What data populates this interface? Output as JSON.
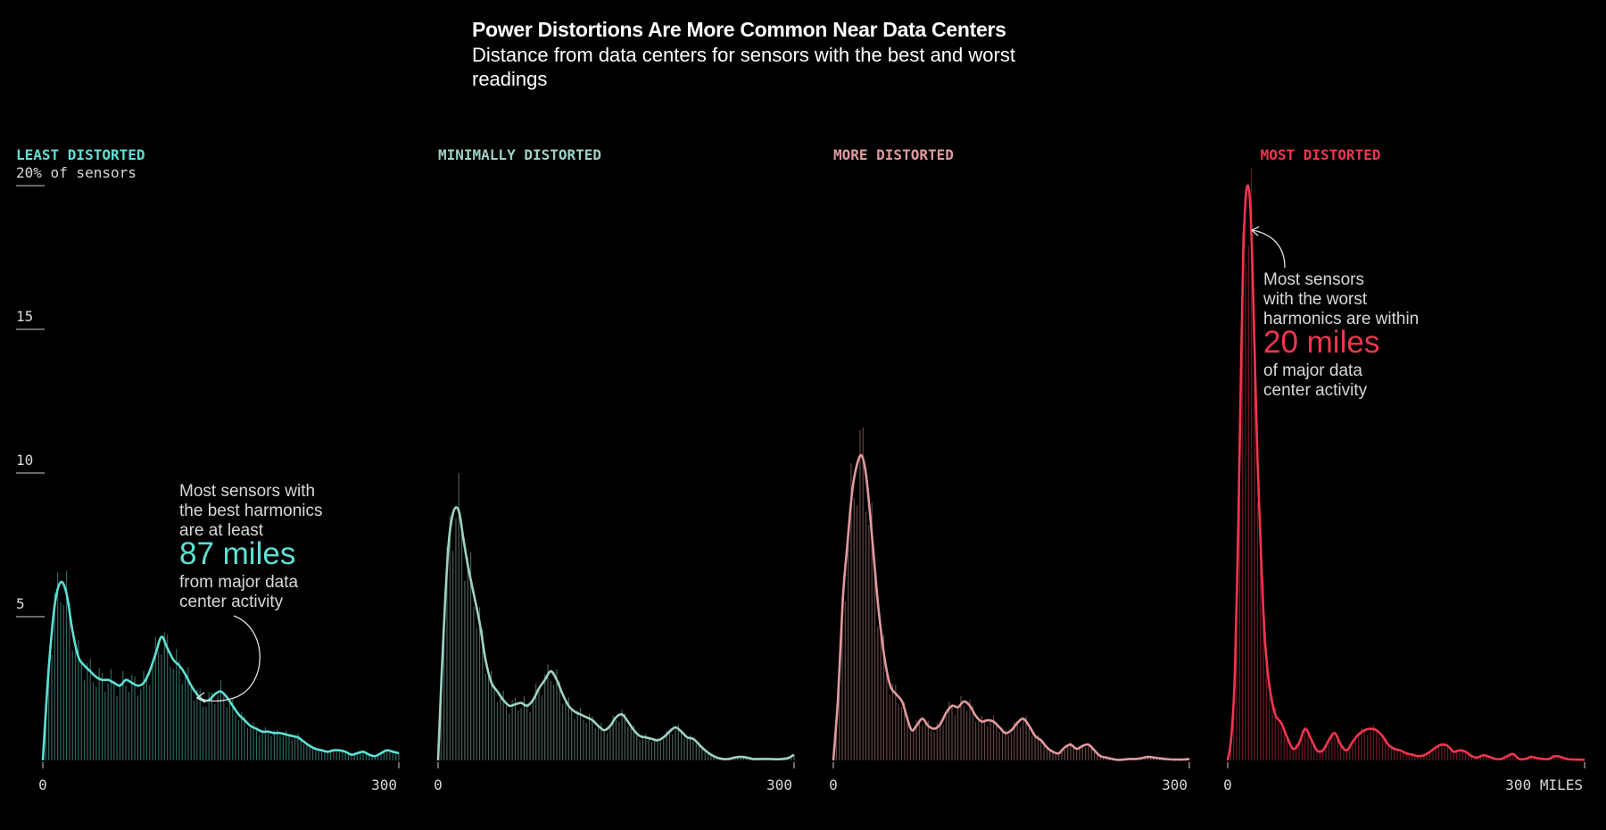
{
  "title": "Power Distortions Are More Common Near Data Centers",
  "subtitle": "Distance from data centers for sensors with the best and worst readings",
  "chart_data": {
    "type": "area",
    "xlim": [
      0,
      300
    ],
    "ylim": [
      0,
      20
    ],
    "yticks": [
      {
        "value": 20,
        "label": "20% of sensors"
      },
      {
        "value": 15,
        "label": "15"
      },
      {
        "value": 10,
        "label": "10"
      },
      {
        "value": 5,
        "label": "5"
      }
    ],
    "x_tick_labels": [
      "0",
      "300"
    ],
    "x_unit_label": "300 MILES",
    "panels": [
      {
        "name": "LEAST DISTORTED",
        "color": "#5ee0d4",
        "curve": [
          [
            0,
            0
          ],
          [
            5,
            3.2
          ],
          [
            10,
            5.4
          ],
          [
            15,
            6.2
          ],
          [
            20,
            5.8
          ],
          [
            25,
            4.5
          ],
          [
            30,
            3.6
          ],
          [
            35,
            3.3
          ],
          [
            40,
            3.1
          ],
          [
            45,
            2.9
          ],
          [
            50,
            2.8
          ],
          [
            55,
            2.8
          ],
          [
            60,
            2.7
          ],
          [
            65,
            2.6
          ],
          [
            70,
            2.8
          ],
          [
            75,
            2.7
          ],
          [
            80,
            2.6
          ],
          [
            85,
            2.7
          ],
          [
            90,
            3.1
          ],
          [
            95,
            3.7
          ],
          [
            100,
            4.3
          ],
          [
            105,
            3.9
          ],
          [
            110,
            3.5
          ],
          [
            115,
            3.3
          ],
          [
            120,
            3.0
          ],
          [
            125,
            2.6
          ],
          [
            130,
            2.3
          ],
          [
            135,
            2.1
          ],
          [
            140,
            2.1
          ],
          [
            145,
            2.3
          ],
          [
            150,
            2.4
          ],
          [
            155,
            2.2
          ],
          [
            160,
            1.9
          ],
          [
            165,
            1.6
          ],
          [
            170,
            1.4
          ],
          [
            175,
            1.2
          ],
          [
            180,
            1.1
          ],
          [
            185,
            1.0
          ],
          [
            190,
            1.0
          ],
          [
            195,
            0.95
          ],
          [
            200,
            0.95
          ],
          [
            205,
            0.9
          ],
          [
            210,
            0.85
          ],
          [
            215,
            0.8
          ],
          [
            220,
            0.65
          ],
          [
            225,
            0.5
          ],
          [
            230,
            0.4
          ],
          [
            235,
            0.35
          ],
          [
            240,
            0.3
          ],
          [
            245,
            0.35
          ],
          [
            250,
            0.35
          ],
          [
            255,
            0.3
          ],
          [
            260,
            0.2
          ],
          [
            265,
            0.25
          ],
          [
            270,
            0.3
          ],
          [
            275,
            0.2
          ],
          [
            280,
            0.15
          ],
          [
            285,
            0.25
          ],
          [
            290,
            0.35
          ],
          [
            295,
            0.3
          ],
          [
            300,
            0.25
          ]
        ],
        "annotation": {
          "lines": [
            "Most sensors with",
            "the best harmonics",
            "are at least"
          ],
          "highlight": "87 miles",
          "after": [
            "from major data",
            "center activity"
          ]
        }
      },
      {
        "name": "MINIMALLY DISTORTED",
        "color": "#9ed2c6",
        "curve": [
          [
            0,
            0
          ],
          [
            3,
            3.0
          ],
          [
            6,
            5.6
          ],
          [
            9,
            7.6
          ],
          [
            12,
            8.5
          ],
          [
            15,
            8.8
          ],
          [
            18,
            8.6
          ],
          [
            21,
            7.8
          ],
          [
            25,
            6.8
          ],
          [
            30,
            5.8
          ],
          [
            35,
            4.8
          ],
          [
            40,
            3.5
          ],
          [
            45,
            2.7
          ],
          [
            50,
            2.4
          ],
          [
            55,
            2.1
          ],
          [
            60,
            1.9
          ],
          [
            65,
            1.95
          ],
          [
            70,
            2.0
          ],
          [
            75,
            1.9
          ],
          [
            80,
            2.1
          ],
          [
            85,
            2.5
          ],
          [
            90,
            2.8
          ],
          [
            95,
            3.1
          ],
          [
            100,
            2.8
          ],
          [
            105,
            2.3
          ],
          [
            110,
            1.9
          ],
          [
            115,
            1.7
          ],
          [
            120,
            1.6
          ],
          [
            125,
            1.5
          ],
          [
            130,
            1.4
          ],
          [
            135,
            1.2
          ],
          [
            140,
            1.05
          ],
          [
            145,
            1.2
          ],
          [
            150,
            1.5
          ],
          [
            155,
            1.6
          ],
          [
            160,
            1.35
          ],
          [
            165,
            1.05
          ],
          [
            170,
            0.85
          ],
          [
            175,
            0.8
          ],
          [
            180,
            0.75
          ],
          [
            185,
            0.7
          ],
          [
            190,
            0.8
          ],
          [
            195,
            1.0
          ],
          [
            200,
            1.15
          ],
          [
            205,
            1.0
          ],
          [
            210,
            0.8
          ],
          [
            215,
            0.75
          ],
          [
            220,
            0.55
          ],
          [
            225,
            0.35
          ],
          [
            230,
            0.2
          ],
          [
            235,
            0.1
          ],
          [
            240,
            0.05
          ],
          [
            245,
            0.05
          ],
          [
            250,
            0.1
          ],
          [
            255,
            0.12
          ],
          [
            260,
            0.1
          ],
          [
            265,
            0.05
          ],
          [
            270,
            0.05
          ],
          [
            275,
            0.05
          ],
          [
            280,
            0.05
          ],
          [
            285,
            0.04
          ],
          [
            290,
            0.05
          ],
          [
            295,
            0.08
          ],
          [
            300,
            0.2
          ]
        ],
        "annotation": null
      },
      {
        "name": "MORE DISTORTED",
        "color": "#e09a9e",
        "curve": [
          [
            0,
            0
          ],
          [
            4,
            2.2
          ],
          [
            8,
            5.6
          ],
          [
            12,
            7.6
          ],
          [
            16,
            9.4
          ],
          [
            20,
            10.3
          ],
          [
            24,
            10.6
          ],
          [
            28,
            9.8
          ],
          [
            33,
            7.6
          ],
          [
            38,
            5.3
          ],
          [
            43,
            3.6
          ],
          [
            48,
            2.6
          ],
          [
            53,
            2.3
          ],
          [
            58,
            2.05
          ],
          [
            62,
            1.5
          ],
          [
            66,
            1.05
          ],
          [
            70,
            1.2
          ],
          [
            75,
            1.45
          ],
          [
            80,
            1.2
          ],
          [
            85,
            1.1
          ],
          [
            90,
            1.25
          ],
          [
            95,
            1.65
          ],
          [
            100,
            1.9
          ],
          [
            105,
            1.85
          ],
          [
            110,
            2.05
          ],
          [
            115,
            1.9
          ],
          [
            120,
            1.55
          ],
          [
            125,
            1.35
          ],
          [
            130,
            1.4
          ],
          [
            135,
            1.35
          ],
          [
            140,
            1.15
          ],
          [
            145,
            0.95
          ],
          [
            150,
            1.05
          ],
          [
            155,
            1.3
          ],
          [
            160,
            1.45
          ],
          [
            165,
            1.2
          ],
          [
            170,
            0.85
          ],
          [
            175,
            0.7
          ],
          [
            180,
            0.45
          ],
          [
            185,
            0.3
          ],
          [
            190,
            0.25
          ],
          [
            195,
            0.45
          ],
          [
            200,
            0.55
          ],
          [
            205,
            0.4
          ],
          [
            210,
            0.5
          ],
          [
            215,
            0.55
          ],
          [
            220,
            0.35
          ],
          [
            225,
            0.15
          ],
          [
            230,
            0.1
          ],
          [
            235,
            0.05
          ],
          [
            240,
            0.02
          ],
          [
            250,
            0.05
          ],
          [
            255,
            0.05
          ],
          [
            260,
            0.08
          ],
          [
            265,
            0.12
          ],
          [
            270,
            0.1
          ],
          [
            275,
            0.07
          ],
          [
            280,
            0.05
          ],
          [
            285,
            0.03
          ],
          [
            290,
            0.03
          ],
          [
            295,
            0.03
          ],
          [
            300,
            0.05
          ]
        ],
        "annotation": null
      },
      {
        "name": "MOST DISTORTED",
        "color": "#f2354f",
        "curve": [
          [
            0,
            0
          ],
          [
            3,
            0.8
          ],
          [
            6,
            3.0
          ],
          [
            9,
            8.4
          ],
          [
            11,
            13.2
          ],
          [
            13,
            17.4
          ],
          [
            15,
            19.5
          ],
          [
            17,
            20.0
          ],
          [
            19,
            19.3
          ],
          [
            21,
            16.9
          ],
          [
            23,
            13.6
          ],
          [
            25,
            10.6
          ],
          [
            28,
            7.2
          ],
          [
            31,
            4.4
          ],
          [
            35,
            2.6
          ],
          [
            40,
            1.6
          ],
          [
            45,
            1.3
          ],
          [
            50,
            0.8
          ],
          [
            55,
            0.4
          ],
          [
            60,
            0.6
          ],
          [
            65,
            1.1
          ],
          [
            70,
            0.75
          ],
          [
            75,
            0.35
          ],
          [
            80,
            0.35
          ],
          [
            85,
            0.7
          ],
          [
            90,
            0.95
          ],
          [
            95,
            0.55
          ],
          [
            100,
            0.35
          ],
          [
            105,
            0.65
          ],
          [
            110,
            0.9
          ],
          [
            115,
            1.05
          ],
          [
            120,
            1.1
          ],
          [
            125,
            1.05
          ],
          [
            130,
            0.85
          ],
          [
            135,
            0.55
          ],
          [
            140,
            0.4
          ],
          [
            145,
            0.35
          ],
          [
            150,
            0.25
          ],
          [
            155,
            0.2
          ],
          [
            160,
            0.15
          ],
          [
            165,
            0.18
          ],
          [
            170,
            0.3
          ],
          [
            175,
            0.45
          ],
          [
            180,
            0.55
          ],
          [
            185,
            0.5
          ],
          [
            190,
            0.3
          ],
          [
            195,
            0.35
          ],
          [
            200,
            0.3
          ],
          [
            205,
            0.15
          ],
          [
            210,
            0.1
          ],
          [
            215,
            0.18
          ],
          [
            220,
            0.12
          ],
          [
            225,
            0.05
          ],
          [
            230,
            0.05
          ],
          [
            235,
            0.15
          ],
          [
            240,
            0.22
          ],
          [
            245,
            0.05
          ],
          [
            250,
            0.05
          ],
          [
            255,
            0.12
          ],
          [
            260,
            0.08
          ],
          [
            265,
            0.05
          ],
          [
            270,
            0.05
          ],
          [
            275,
            0.15
          ],
          [
            280,
            0.12
          ],
          [
            285,
            0.05
          ],
          [
            290,
            0.03
          ],
          [
            295,
            0.03
          ],
          [
            300,
            0.02
          ]
        ],
        "annotation": {
          "lines": [
            "Most sensors",
            "with the worst",
            "harmonics are within"
          ],
          "highlight": "20 miles",
          "after": [
            "of major data",
            "center activity"
          ]
        }
      }
    ]
  }
}
